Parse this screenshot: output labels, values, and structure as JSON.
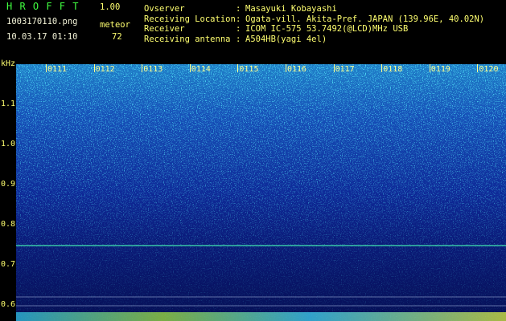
{
  "header": {
    "app_name": "H R O F F T",
    "version": "1.00",
    "filename": "1003170110.png",
    "datetime": "10.03.17 01:10",
    "meteor_label": "meteor",
    "meteor_count": "72"
  },
  "info_separator": ":",
  "info": [
    {
      "label": "Ovserver",
      "value": "Masayuki Kobayashi"
    },
    {
      "label": "Receiving Location",
      "value": "Ogata-vill. Akita-Pref. JAPAN (139.96E, 40.02N)"
    },
    {
      "label": "Receiver",
      "value": "ICOM IC-575 53.7492(@LCD)MHz USB"
    },
    {
      "label": "Receiving antenna",
      "value": "A504HB(yagi 4el)"
    }
  ],
  "spectrogram": {
    "unit": "kHz",
    "freq_labels": [
      "1.1",
      "1.0",
      "0.9",
      "0.8",
      "0.7",
      "0.6"
    ],
    "time_labels": [
      "0111",
      "0112",
      "0113",
      "0114",
      "0115",
      "0116",
      "0117",
      "0118",
      "0119",
      "0120"
    ]
  }
}
